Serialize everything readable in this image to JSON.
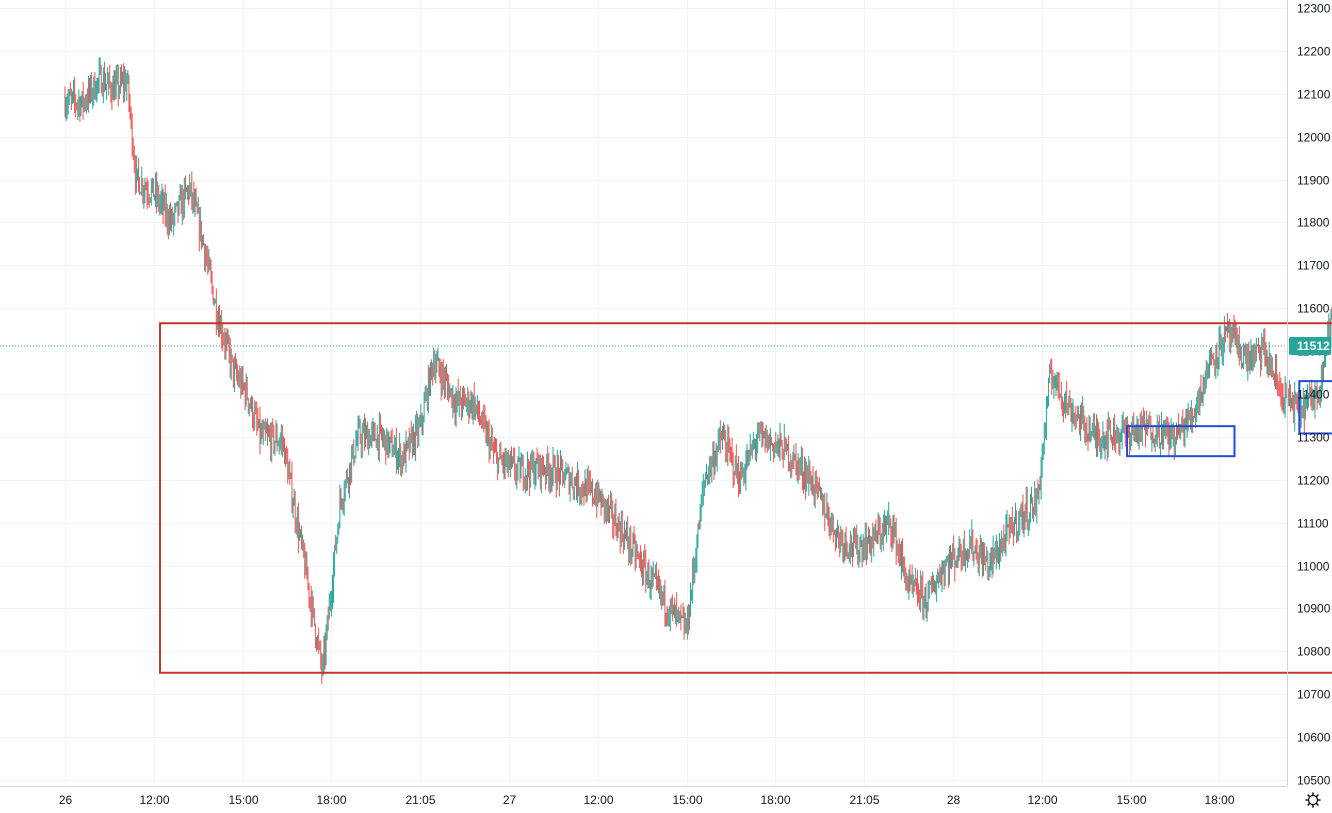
{
  "chart_data": {
    "type": "candlestick",
    "instrument_price_scale": "right",
    "ylim": [
      10480,
      12300
    ],
    "y_ticks": [
      10500,
      10600,
      10700,
      10800,
      10900,
      11000,
      11100,
      11200,
      11300,
      11400,
      11500,
      11600,
      11700,
      11800,
      11900,
      12000,
      12100,
      12200,
      12300
    ],
    "x_ticks": [
      "26",
      "12:00",
      "15:00",
      "18:00",
      "21:05",
      "27",
      "12:00",
      "15:00",
      "18:00",
      "21:05",
      "28",
      "12:00",
      "15:00",
      "18:00"
    ],
    "last_price": 11512,
    "grid": true,
    "colors": {
      "up": "#26a69a",
      "down": "#ef5350",
      "range_box": "#c0392b",
      "consolidation_boxes": "#1c4ed8",
      "projection_arrow": "#f0a020",
      "price_tag": "#26a69a",
      "grid": "#f0f3fa"
    },
    "price_path": [
      [
        0,
        12085
      ],
      [
        0.2,
        12080
      ],
      [
        0.4,
        12135
      ],
      [
        0.55,
        12110
      ],
      [
        0.7,
        12130
      ],
      [
        0.8,
        11900
      ],
      [
        1.0,
        11870
      ],
      [
        1.2,
        11800
      ],
      [
        1.4,
        11880
      ],
      [
        1.55,
        11760
      ],
      [
        1.7,
        11600
      ],
      [
        1.9,
        11450
      ],
      [
        2.05,
        11400
      ],
      [
        2.2,
        11300
      ],
      [
        2.45,
        11290
      ],
      [
        2.7,
        11000
      ],
      [
        2.9,
        10750
      ],
      [
        3.1,
        11150
      ],
      [
        3.3,
        11300
      ],
      [
        3.55,
        11300
      ],
      [
        3.8,
        11250
      ],
      [
        4.0,
        11320
      ],
      [
        4.15,
        11480
      ],
      [
        4.4,
        11380
      ],
      [
        4.6,
        11380
      ],
      [
        4.85,
        11250
      ],
      [
        5.1,
        11220
      ],
      [
        5.4,
        11230
      ],
      [
        5.7,
        11200
      ],
      [
        6.0,
        11160
      ],
      [
        6.3,
        11070
      ],
      [
        6.55,
        10980
      ],
      [
        6.8,
        10900
      ],
      [
        7.0,
        10850
      ],
      [
        7.2,
        11200
      ],
      [
        7.4,
        11300
      ],
      [
        7.6,
        11200
      ],
      [
        7.8,
        11300
      ],
      [
        8.1,
        11270
      ],
      [
        8.4,
        11200
      ],
      [
        8.7,
        11070
      ],
      [
        8.9,
        11040
      ],
      [
        9.1,
        11060
      ],
      [
        9.3,
        11100
      ],
      [
        9.5,
        10950
      ],
      [
        9.7,
        10920
      ],
      [
        9.9,
        11000
      ],
      [
        10.2,
        11050
      ],
      [
        10.4,
        11000
      ],
      [
        10.7,
        11100
      ],
      [
        10.95,
        11150
      ],
      [
        11.1,
        11450
      ],
      [
        11.3,
        11370
      ],
      [
        11.6,
        11300
      ],
      [
        11.9,
        11310
      ],
      [
        12.2,
        11320
      ],
      [
        12.5,
        11300
      ],
      [
        12.7,
        11350
      ],
      [
        12.9,
        11480
      ],
      [
        13.1,
        11540
      ],
      [
        13.3,
        11480
      ],
      [
        13.5,
        11500
      ],
      [
        13.7,
        11400
      ],
      [
        13.9,
        11360
      ],
      [
        14.1,
        11400
      ],
      [
        14.3,
        11620
      ],
      [
        14.5,
        11680
      ],
      [
        14.7,
        11560
      ],
      [
        14.85,
        11470
      ],
      [
        15.0,
        11440
      ],
      [
        15.1,
        11512
      ]
    ],
    "annotations": [
      {
        "kind": "rectangle",
        "label": "",
        "x": [
          1.07,
          17.06
        ],
        "y": [
          10750,
          11565
        ]
      },
      {
        "kind": "rectangle",
        "label": "",
        "x": [
          11.96,
          13.17
        ],
        "y": [
          11255,
          11325
        ]
      },
      {
        "kind": "rectangle",
        "label": "",
        "x": [
          13.9,
          14.53
        ],
        "y": [
          11308,
          11430
        ]
      },
      {
        "kind": "rectangle",
        "label": "",
        "x": [
          14.86,
          15.31
        ],
        "y": [
          11375,
          11485
        ]
      },
      {
        "kind": "arrow",
        "label": "",
        "x": [
          15.31,
          16.36
        ],
        "y": [
          11565,
          10945
        ]
      }
    ]
  }
}
